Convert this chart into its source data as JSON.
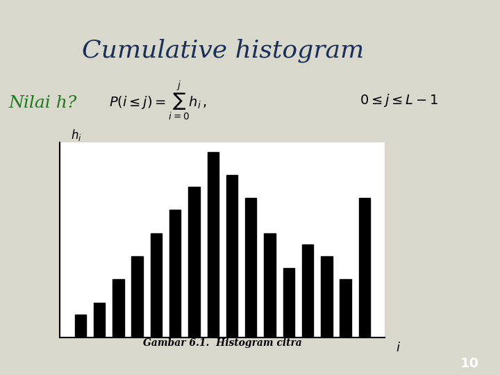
{
  "title": "Cumulative histogram",
  "title_color": "#1a2e5a",
  "label_text": "Nilai h?",
  "label_color": "#1a7a1a",
  "formula_box_color": "#f0f0f0",
  "bg_color": "#d8d8cc",
  "slide_bg": "#d8d8cc",
  "header_bar_color": "#3a4a5a",
  "page_number": "10",
  "histogram_caption": "Gambar 6.1.  Histogram citra",
  "bar_values": [
    2,
    3,
    5,
    7,
    9,
    11,
    13,
    16,
    14,
    12,
    9,
    6,
    8,
    7,
    5,
    12
  ],
  "bar_color": "#000000",
  "xlabel": "i",
  "ylabel": "h_i",
  "chart_bg": "#ffffff"
}
